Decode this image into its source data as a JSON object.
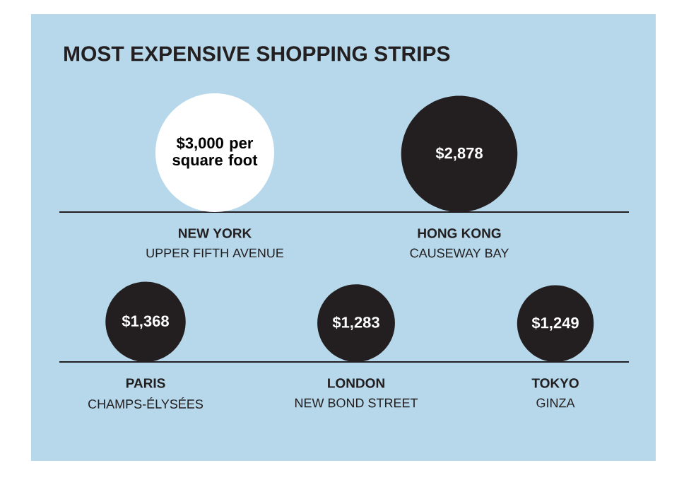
{
  "chart_data": {
    "type": "other",
    "title": "MOST EXPENSIVE SHOPPING STRIPS",
    "categories": [
      "NEW YORK",
      "HONG KONG",
      "PARIS",
      "LONDON",
      "TOKYO"
    ],
    "values": [
      3000,
      2878,
      1368,
      1283,
      1249
    ],
    "value_labels": [
      "$3,000 per square foot",
      "$2,878",
      "$1,368",
      "$1,283",
      "$1,249"
    ],
    "colors": [
      "#ffffff",
      "#231f20",
      "#231f20",
      "#231f20",
      "#231f20"
    ],
    "annotations": [
      "UPPER FIFTH AVENUE",
      "CAUSEWAY BAY",
      "CHAMPS-ÉLYSÉES",
      "NEW BOND STREET",
      "GINZA"
    ]
  }
}
